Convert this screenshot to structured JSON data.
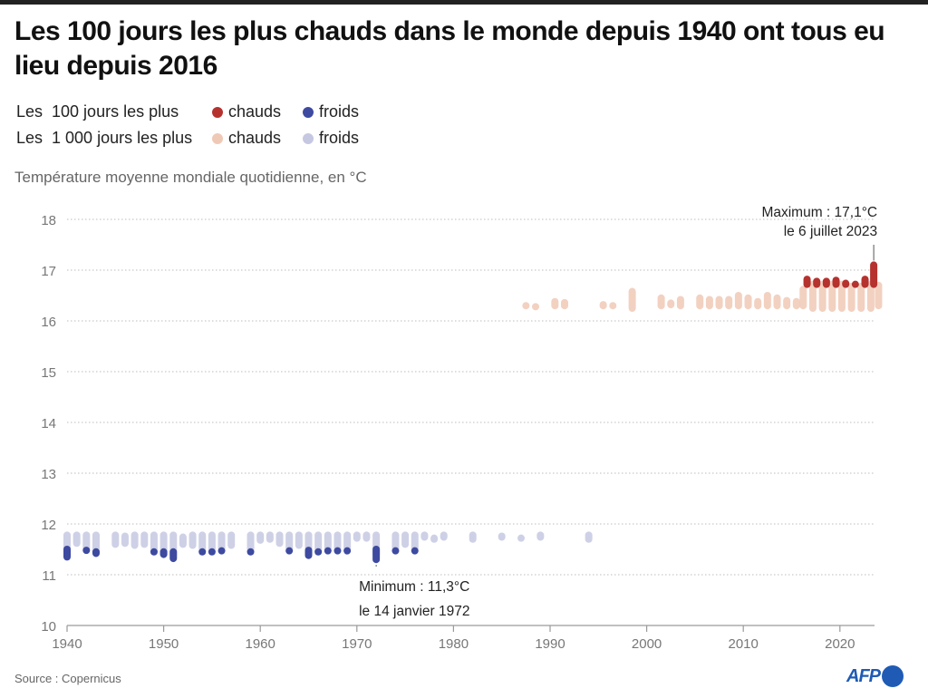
{
  "title": "Les 100 jours les plus chauds dans le monde depuis 1940 ont tous eu lieu depuis 2016",
  "legend": {
    "row1_label": "Les  100 jours les plus",
    "row2_label": "Les  1 000 jours les plus",
    "hot": "chauds",
    "cold": "froids"
  },
  "colors": {
    "top100_hot": "#b5322f",
    "top100_cold": "#3d4aa0",
    "top1000_hot": "#f0c9b6",
    "top1000_cold": "#c6c8e2",
    "grid": "#bdbdbd",
    "axis": "#9a9a9a"
  },
  "source": "Source : Copernicus",
  "logo": "AFP",
  "chart_data": {
    "type": "scatter",
    "title": "Les 100 jours les plus chauds dans le monde depuis 1940 ont tous eu lieu depuis 2016",
    "ylabel": "Température moyenne mondiale quotidienne, en °C",
    "xlabel": "",
    "xlim": [
      1940,
      2024
    ],
    "ylim": [
      10,
      18
    ],
    "x_ticks": [
      "1940",
      "1950",
      "1960",
      "1970",
      "1980",
      "1990",
      "2000",
      "2010",
      "2020"
    ],
    "y_ticks": [
      "10",
      "11",
      "12",
      "13",
      "14",
      "15",
      "16",
      "17",
      "18"
    ],
    "grid": true,
    "annotations": [
      {
        "name": "maximum",
        "line1": "Maximum : 17,1°C",
        "line2": "le 6 juillet 2023",
        "x": 2023.5,
        "y": 17.1
      },
      {
        "name": "minimum",
        "line1": "Minimum : 11,3°C",
        "line2": "le 14 janvier 1972",
        "x": 1972,
        "y": 11.3
      }
    ],
    "series": [
      {
        "name": "1 000 jours les plus froids",
        "category": "top1000_cold",
        "columns": [
          {
            "year": 1940,
            "min": 11.45,
            "max": 11.78
          },
          {
            "year": 1941,
            "min": 11.62,
            "max": 11.78
          },
          {
            "year": 1942,
            "min": 11.5,
            "max": 11.78
          },
          {
            "year": 1943,
            "min": 11.45,
            "max": 11.78
          },
          {
            "year": 1945,
            "min": 11.6,
            "max": 11.78
          },
          {
            "year": 1946,
            "min": 11.62,
            "max": 11.76
          },
          {
            "year": 1947,
            "min": 11.58,
            "max": 11.78
          },
          {
            "year": 1948,
            "min": 11.6,
            "max": 11.78
          },
          {
            "year": 1949,
            "min": 11.45,
            "max": 11.78
          },
          {
            "year": 1950,
            "min": 11.45,
            "max": 11.78
          },
          {
            "year": 1951,
            "min": 11.4,
            "max": 11.78
          },
          {
            "year": 1952,
            "min": 11.6,
            "max": 11.74
          },
          {
            "year": 1953,
            "min": 11.58,
            "max": 11.78
          },
          {
            "year": 1954,
            "min": 11.5,
            "max": 11.78
          },
          {
            "year": 1955,
            "min": 11.5,
            "max": 11.78
          },
          {
            "year": 1956,
            "min": 11.5,
            "max": 11.78
          },
          {
            "year": 1957,
            "min": 11.58,
            "max": 11.78
          },
          {
            "year": 1959,
            "min": 11.5,
            "max": 11.78
          },
          {
            "year": 1960,
            "min": 11.68,
            "max": 11.78
          },
          {
            "year": 1961,
            "min": 11.7,
            "max": 11.78
          },
          {
            "year": 1962,
            "min": 11.62,
            "max": 11.78
          },
          {
            "year": 1963,
            "min": 11.5,
            "max": 11.78
          },
          {
            "year": 1964,
            "min": 11.58,
            "max": 11.78
          },
          {
            "year": 1965,
            "min": 11.45,
            "max": 11.78
          },
          {
            "year": 1966,
            "min": 11.45,
            "max": 11.78
          },
          {
            "year": 1967,
            "min": 11.5,
            "max": 11.78
          },
          {
            "year": 1968,
            "min": 11.5,
            "max": 11.78
          },
          {
            "year": 1969,
            "min": 11.5,
            "max": 11.78
          },
          {
            "year": 1970,
            "min": 11.72,
            "max": 11.78
          },
          {
            "year": 1971,
            "min": 11.72,
            "max": 11.78
          },
          {
            "year": 1972,
            "min": 11.4,
            "max": 11.78
          },
          {
            "year": 1974,
            "min": 11.5,
            "max": 11.78
          },
          {
            "year": 1975,
            "min": 11.6,
            "max": 11.78
          },
          {
            "year": 1976,
            "min": 11.5,
            "max": 11.78
          },
          {
            "year": 1977,
            "min": 11.74,
            "max": 11.78
          },
          {
            "year": 1978,
            "min": 11.7,
            "max": 11.72
          },
          {
            "year": 1979,
            "min": 11.74,
            "max": 11.78
          },
          {
            "year": 1982,
            "min": 11.7,
            "max": 11.78
          },
          {
            "year": 1985,
            "min": 11.74,
            "max": 11.76
          },
          {
            "year": 1987,
            "min": 11.72,
            "max": 11.72
          },
          {
            "year": 1989,
            "min": 11.74,
            "max": 11.78
          },
          {
            "year": 1994,
            "min": 11.7,
            "max": 11.78
          }
        ]
      },
      {
        "name": "100 jours les plus froids",
        "category": "top100_cold",
        "columns": [
          {
            "year": 1940,
            "min": 11.35,
            "max": 11.5
          },
          {
            "year": 1942,
            "min": 11.48,
            "max": 11.48
          },
          {
            "year": 1943,
            "min": 11.42,
            "max": 11.45
          },
          {
            "year": 1949,
            "min": 11.45,
            "max": 11.45
          },
          {
            "year": 1950,
            "min": 11.4,
            "max": 11.45
          },
          {
            "year": 1951,
            "min": 11.32,
            "max": 11.45
          },
          {
            "year": 1954,
            "min": 11.45,
            "max": 11.45
          },
          {
            "year": 1955,
            "min": 11.45,
            "max": 11.45
          },
          {
            "year": 1956,
            "min": 11.47,
            "max": 11.47
          },
          {
            "year": 1959,
            "min": 11.45,
            "max": 11.45
          },
          {
            "year": 1963,
            "min": 11.47,
            "max": 11.47
          },
          {
            "year": 1965,
            "min": 11.38,
            "max": 11.48
          },
          {
            "year": 1966,
            "min": 11.45,
            "max": 11.45
          },
          {
            "year": 1967,
            "min": 11.47,
            "max": 11.47
          },
          {
            "year": 1968,
            "min": 11.47,
            "max": 11.47
          },
          {
            "year": 1969,
            "min": 11.47,
            "max": 11.47
          },
          {
            "year": 1972,
            "min": 11.3,
            "max": 11.5
          },
          {
            "year": 1974,
            "min": 11.47,
            "max": 11.47
          },
          {
            "year": 1976,
            "min": 11.47,
            "max": 11.47
          }
        ]
      },
      {
        "name": "1 000 jours les plus chauds",
        "category": "top1000_hot",
        "columns": [
          {
            "year": 1987.5,
            "min": 16.3,
            "max": 16.3
          },
          {
            "year": 1988.5,
            "min": 16.28,
            "max": 16.28
          },
          {
            "year": 1990.5,
            "min": 16.3,
            "max": 16.38
          },
          {
            "year": 1991.5,
            "min": 16.3,
            "max": 16.36
          },
          {
            "year": 1995.5,
            "min": 16.3,
            "max": 16.32
          },
          {
            "year": 1996.5,
            "min": 16.3,
            "max": 16.3
          },
          {
            "year": 1998.5,
            "min": 16.25,
            "max": 16.58
          },
          {
            "year": 2001.5,
            "min": 16.3,
            "max": 16.45
          },
          {
            "year": 2002.5,
            "min": 16.32,
            "max": 16.35
          },
          {
            "year": 2003.5,
            "min": 16.3,
            "max": 16.42
          },
          {
            "year": 2005.5,
            "min": 16.3,
            "max": 16.45
          },
          {
            "year": 2006.5,
            "min": 16.3,
            "max": 16.42
          },
          {
            "year": 2007.5,
            "min": 16.3,
            "max": 16.42
          },
          {
            "year": 2008.5,
            "min": 16.3,
            "max": 16.42
          },
          {
            "year": 2009.5,
            "min": 16.3,
            "max": 16.5
          },
          {
            "year": 2010.5,
            "min": 16.3,
            "max": 16.45
          },
          {
            "year": 2011.5,
            "min": 16.3,
            "max": 16.38
          },
          {
            "year": 2012.5,
            "min": 16.3,
            "max": 16.5
          },
          {
            "year": 2013.5,
            "min": 16.3,
            "max": 16.45
          },
          {
            "year": 2014.5,
            "min": 16.3,
            "max": 16.4
          },
          {
            "year": 2015.5,
            "min": 16.3,
            "max": 16.38
          },
          {
            "year": 2016.2,
            "min": 16.3,
            "max": 16.62
          },
          {
            "year": 2017.2,
            "min": 16.25,
            "max": 16.72
          },
          {
            "year": 2018.2,
            "min": 16.25,
            "max": 16.72
          },
          {
            "year": 2019.2,
            "min": 16.25,
            "max": 16.72
          },
          {
            "year": 2020.2,
            "min": 16.25,
            "max": 16.72
          },
          {
            "year": 2021.2,
            "min": 16.25,
            "max": 16.68
          },
          {
            "year": 2022.2,
            "min": 16.25,
            "max": 16.68
          },
          {
            "year": 2023.2,
            "min": 16.25,
            "max": 16.72
          },
          {
            "year": 2024.0,
            "min": 16.3,
            "max": 16.7
          }
        ]
      },
      {
        "name": "100 jours les plus chauds",
        "category": "top100_hot",
        "columns": [
          {
            "year": 2016.6,
            "min": 16.72,
            "max": 16.82
          },
          {
            "year": 2017.6,
            "min": 16.72,
            "max": 16.78
          },
          {
            "year": 2018.6,
            "min": 16.72,
            "max": 16.78
          },
          {
            "year": 2019.6,
            "min": 16.72,
            "max": 16.8
          },
          {
            "year": 2020.6,
            "min": 16.72,
            "max": 16.74
          },
          {
            "year": 2021.6,
            "min": 16.72,
            "max": 16.72
          },
          {
            "year": 2022.6,
            "min": 16.72,
            "max": 16.82
          },
          {
            "year": 2023.5,
            "min": 16.72,
            "max": 17.1
          }
        ]
      }
    ]
  }
}
